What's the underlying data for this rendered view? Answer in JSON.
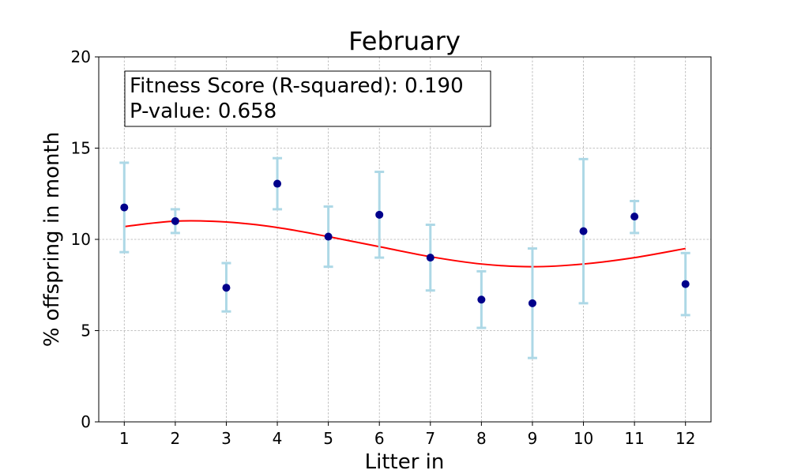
{
  "chart_data": {
    "type": "scatter",
    "title": "February",
    "xlabel": "Litter in",
    "ylabel": "% offspring in month",
    "xlim": [
      0.5,
      12.5
    ],
    "ylim": [
      0,
      20
    ],
    "x_ticks": [
      "1",
      "2",
      "3",
      "4",
      "5",
      "6",
      "7",
      "8",
      "9",
      "10",
      "11",
      "12"
    ],
    "y_ticks": [
      "0",
      "5",
      "10",
      "15",
      "20"
    ],
    "grid": true,
    "x": [
      1,
      2,
      3,
      4,
      5,
      6,
      7,
      8,
      9,
      10,
      11,
      12
    ],
    "y": [
      11.75,
      11.0,
      7.35,
      13.05,
      10.15,
      11.35,
      9.0,
      6.7,
      6.5,
      10.45,
      11.25,
      7.55
    ],
    "error_low": [
      9.3,
      10.35,
      6.05,
      11.65,
      8.5,
      9.0,
      7.2,
      5.15,
      3.5,
      6.5,
      10.35,
      5.85
    ],
    "error_high": [
      14.2,
      11.65,
      8.7,
      14.45,
      11.8,
      13.7,
      10.8,
      8.25,
      9.5,
      14.4,
      12.1,
      9.25
    ],
    "fit_curve": {
      "x": [
        1,
        2,
        3,
        4,
        5,
        6,
        7,
        8,
        9,
        10,
        11,
        12
      ],
      "y": [
        10.7,
        11.0,
        10.95,
        10.65,
        10.15,
        9.6,
        9.05,
        8.65,
        8.5,
        8.65,
        9.0,
        9.5
      ]
    },
    "annotation": {
      "line1": "Fitness Score (R-squared): 0.190",
      "line2": "P-value: 0.658"
    },
    "colors": {
      "points": "#00008b",
      "error_bars": "#add8e6",
      "fit_line": "#ff0000"
    }
  }
}
